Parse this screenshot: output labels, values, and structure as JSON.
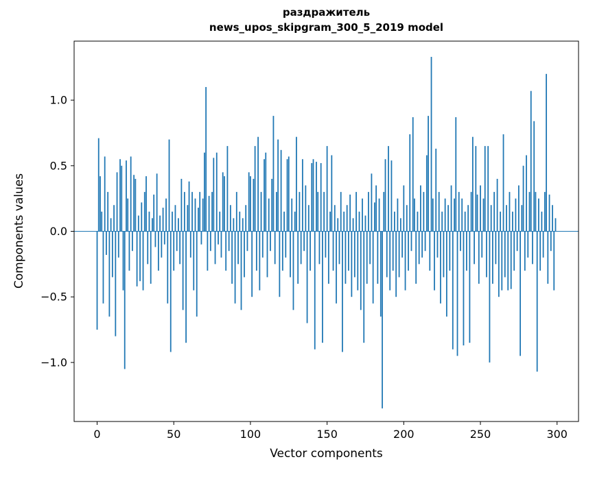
{
  "figure": {
    "title_line1": "раздражитель",
    "title_line2": "news_upos_skipgram_300_5_2019 model",
    "xlabel": "Vector components",
    "ylabel": "Components values"
  },
  "chart_data": {
    "type": "bar",
    "title": "раздражитель — news_upos_skipgram_300_5_2019 model",
    "xlabel": "Vector components",
    "ylabel": "Components values",
    "n_components": 300,
    "xlim": [
      -15,
      314
    ],
    "ylim": [
      -1.45,
      1.45
    ],
    "x_ticks": [
      0,
      50,
      100,
      150,
      200,
      250,
      300
    ],
    "y_ticks": [
      -1.0,
      -0.5,
      0.0,
      0.5,
      1.0
    ],
    "grid": false,
    "legend": "none",
    "bar_color": "#1f77b4",
    "values": [
      -0.75,
      0.71,
      0.42,
      0.15,
      -0.55,
      0.57,
      -0.18,
      0.3,
      -0.65,
      0.1,
      -0.35,
      0.2,
      -0.8,
      0.45,
      -0.2,
      0.55,
      0.5,
      -0.45,
      -1.05,
      0.54,
      0.25,
      -0.3,
      0.57,
      -0.15,
      0.43,
      0.4,
      -0.42,
      0.12,
      -0.38,
      0.22,
      -0.45,
      0.3,
      0.42,
      -0.25,
      0.15,
      -0.4,
      0.1,
      0.28,
      -0.12,
      0.44,
      -0.3,
      0.12,
      -0.2,
      0.18,
      -0.1,
      0.25,
      -0.55,
      0.7,
      -0.92,
      0.15,
      -0.3,
      0.2,
      -0.15,
      0.1,
      -0.25,
      0.4,
      -0.6,
      0.3,
      -0.85,
      0.2,
      0.38,
      -0.2,
      0.3,
      -0.45,
      0.25,
      -0.65,
      0.18,
      0.3,
      -0.1,
      0.25,
      0.6,
      1.1,
      -0.3,
      0.27,
      -0.15,
      0.3,
      0.56,
      -0.25,
      0.6,
      -0.1,
      0.15,
      -0.2,
      0.45,
      0.42,
      -0.3,
      0.65,
      -0.15,
      0.2,
      -0.4,
      0.1,
      -0.55,
      0.3,
      -0.25,
      0.15,
      -0.6,
      0.1,
      -0.35,
      0.2,
      -0.15,
      0.45,
      0.42,
      -0.5,
      0.4,
      0.65,
      -0.3,
      0.72,
      -0.45,
      0.3,
      -0.2,
      0.55,
      0.6,
      -0.35,
      0.25,
      -0.15,
      0.4,
      0.88,
      -0.25,
      0.3,
      0.7,
      -0.5,
      0.62,
      -0.3,
      0.15,
      -0.2,
      0.55,
      0.57,
      -0.35,
      0.25,
      -0.6,
      0.15,
      0.72,
      -0.4,
      0.3,
      -0.25,
      0.55,
      -0.15,
      0.35,
      -0.7,
      0.2,
      -0.3,
      0.52,
      0.55,
      -0.9,
      0.53,
      0.3,
      -0.25,
      0.52,
      -0.85,
      0.3,
      -0.2,
      0.65,
      -0.4,
      0.15,
      0.58,
      -0.3,
      0.2,
      -0.55,
      0.1,
      -0.25,
      0.3,
      -0.92,
      0.15,
      -0.4,
      0.2,
      -0.3,
      0.28,
      -0.5,
      0.1,
      -0.35,
      0.3,
      -0.45,
      0.15,
      -0.6,
      0.25,
      -0.85,
      0.12,
      -0.4,
      0.3,
      -0.25,
      0.44,
      -0.55,
      0.22,
      0.35,
      -0.4,
      0.25,
      -0.65,
      -1.35,
      0.3,
      0.55,
      -0.35,
      0.65,
      -0.45,
      0.54,
      -0.3,
      0.15,
      -0.5,
      0.25,
      -0.35,
      0.1,
      -0.2,
      0.35,
      -0.45,
      0.2,
      -0.3,
      0.74,
      -0.15,
      0.87,
      0.25,
      -0.4,
      0.15,
      -0.25,
      0.35,
      -0.2,
      0.3,
      -0.15,
      0.58,
      0.88,
      -0.3,
      1.33,
      0.25,
      -0.45,
      0.63,
      -0.2,
      0.3,
      -0.55,
      0.15,
      -0.35,
      0.25,
      -0.65,
      0.2,
      -0.3,
      0.35,
      -0.9,
      0.25,
      0.87,
      -0.95,
      0.3,
      -0.15,
      0.25,
      -0.87,
      0.15,
      -0.3,
      0.2,
      -0.85,
      0.3,
      0.72,
      -0.25,
      0.65,
      0.28,
      -0.4,
      0.35,
      -0.2,
      0.25,
      0.65,
      -0.35,
      0.65,
      -1.0,
      0.2,
      -0.4,
      0.3,
      -0.25,
      0.4,
      -0.5,
      0.15,
      -0.45,
      0.74,
      -0.35,
      0.2,
      -0.45,
      0.3,
      -0.44,
      0.15,
      -0.3,
      0.25,
      -0.15,
      0.35,
      -0.95,
      0.2,
      0.5,
      -0.3,
      0.58,
      -0.2,
      0.3,
      1.07,
      -0.25,
      0.84,
      0.3,
      -1.07,
      0.25,
      -0.3,
      0.15,
      -0.2,
      0.3,
      1.2,
      -0.4,
      0.28,
      -0.15,
      0.2,
      -0.45,
      0.1
    ]
  }
}
